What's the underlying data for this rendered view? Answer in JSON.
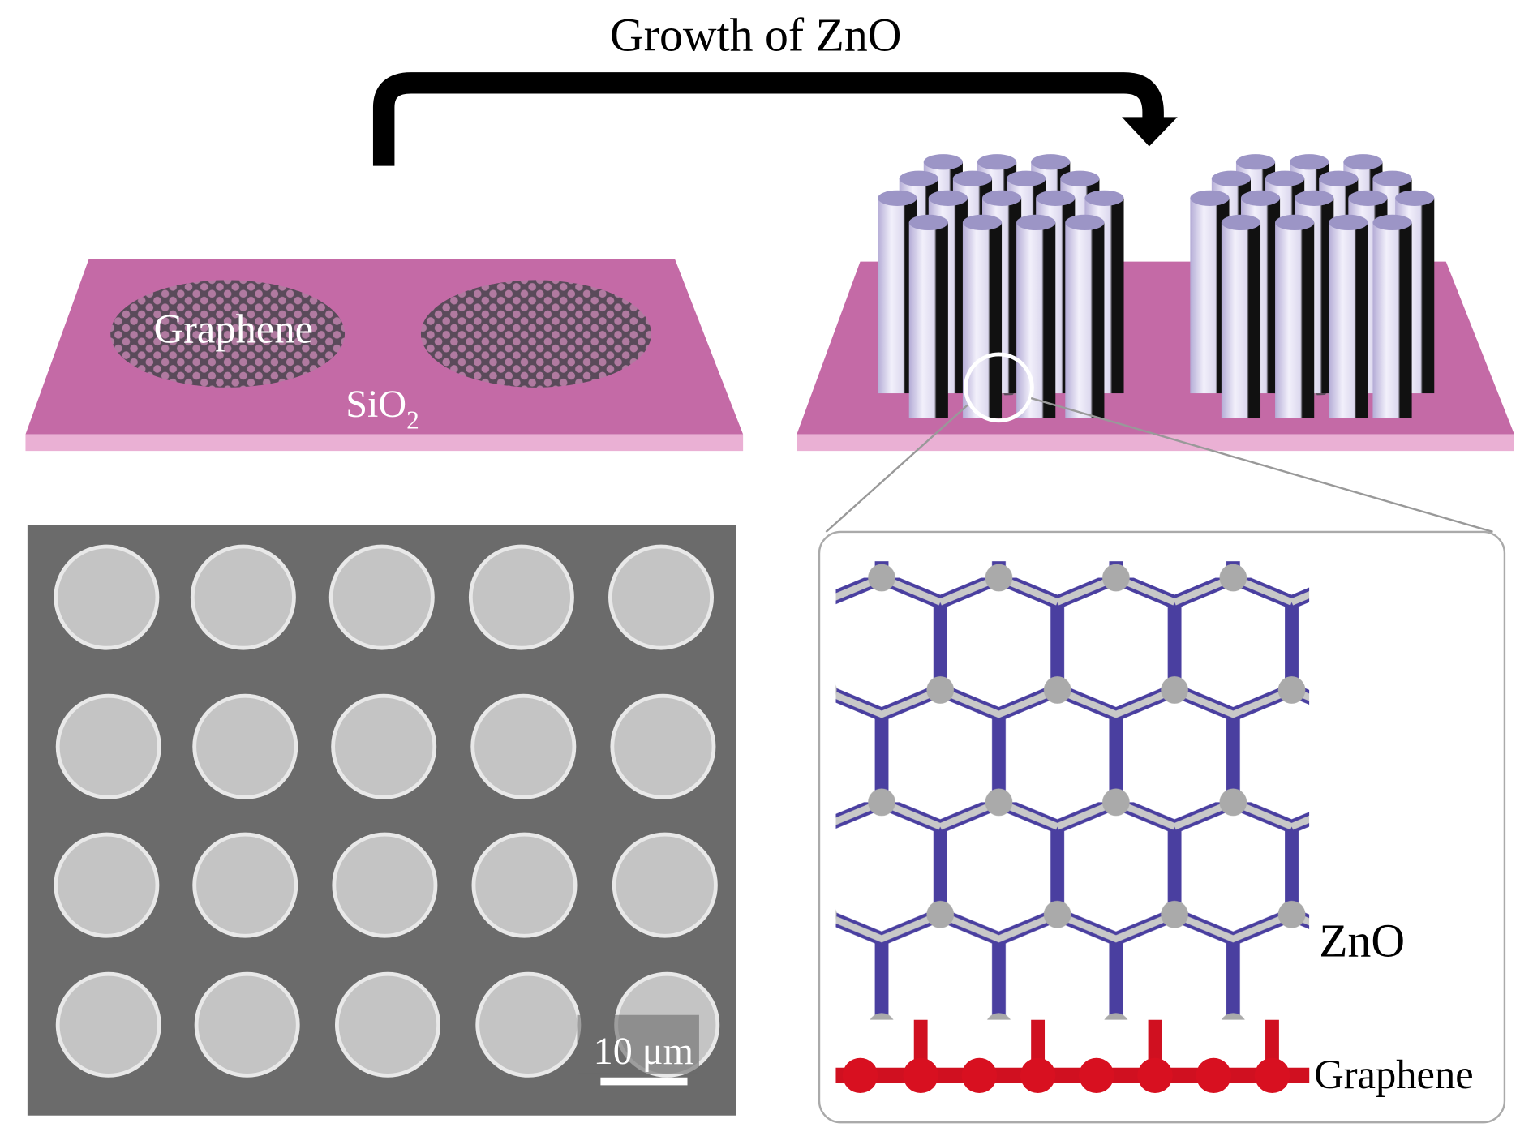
{
  "header": {
    "title": "Growth of ZnO"
  },
  "substrate": {
    "graphene_label": "Graphene",
    "sio2_label": "SiO",
    "sio2_subscript": "2"
  },
  "sem": {
    "scale_bar": "10 μm"
  },
  "inset": {
    "zno_label": "ZnO",
    "graphene_label": "Graphene"
  }
}
